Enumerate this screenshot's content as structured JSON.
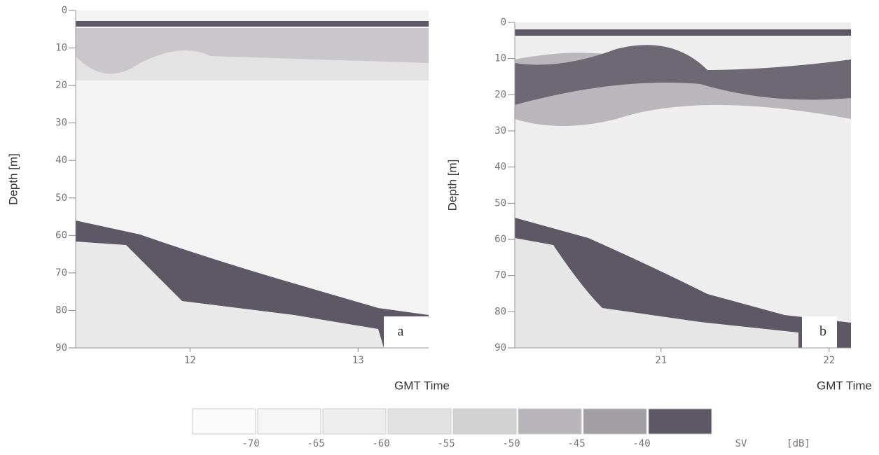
{
  "chart_data": [
    {
      "type": "echogram",
      "label": "a",
      "y_label": "Depth [m]",
      "x_label": "GMT Time",
      "ylim": [
        0,
        90
      ],
      "yticks": [
        0,
        10,
        20,
        30,
        40,
        50,
        60,
        70,
        80,
        90
      ],
      "xlim": [
        11.32,
        13.42
      ],
      "xticks": [
        12,
        13
      ]
    },
    {
      "type": "echogram",
      "label": "b",
      "y_label": "Depth [m]",
      "x_label": "GMT Time",
      "ylim": [
        0,
        90
      ],
      "yticks": [
        0,
        10,
        20,
        30,
        40,
        50,
        60,
        70,
        80,
        90
      ],
      "xlim": [
        20.13,
        22.13
      ],
      "xticks": [
        21,
        22
      ]
    }
  ],
  "colorbar": {
    "ticks": [
      -70,
      -65,
      -60,
      -55,
      -50,
      -45,
      -40
    ],
    "label": "SV",
    "unit": "[dB]",
    "colors": [
      "#fbfbfb",
      "#f6f6f6",
      "#eeeeee",
      "#e2e2e2",
      "#d2d2d2",
      "#b8b6ba",
      "#a19fa4",
      "#5e5866"
    ]
  }
}
